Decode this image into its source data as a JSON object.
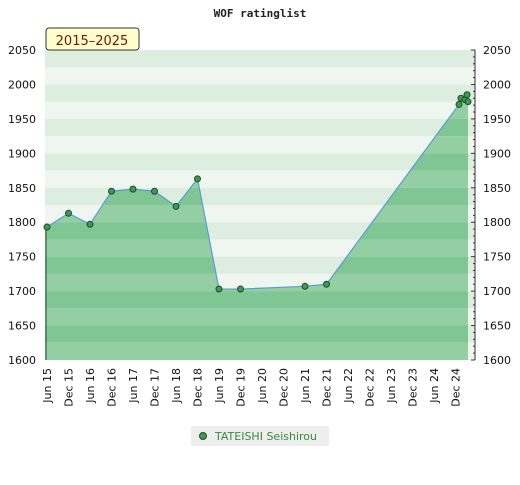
{
  "chart_data": {
    "type": "area",
    "title": "WOF ratinglist",
    "period_badge": "2015–2025",
    "ylim": [
      1600,
      2050
    ],
    "y_ticks": [
      1600,
      1650,
      1700,
      1750,
      1800,
      1850,
      1900,
      1950,
      2000,
      2050
    ],
    "x_tick_labels": [
      "Jun 15",
      "Dec 15",
      "Jun 16",
      "Dec 16",
      "Jun 17",
      "Dec 17",
      "Jun 18",
      "Dec 18",
      "Jun 19",
      "Dec 19",
      "Jun 20",
      "Dec 20",
      "Jun 21",
      "Dec 21",
      "Jun 22",
      "Dec 22",
      "Jun 23",
      "Dec 23",
      "Jun 24",
      "Dec 24"
    ],
    "series": [
      {
        "name": "TATEISHI Seishirou",
        "points": [
          {
            "x": "Jun 15",
            "y": 1793
          },
          {
            "x": "Dec 15",
            "y": 1813
          },
          {
            "x": "Jun 16",
            "y": 1797
          },
          {
            "x": "Dec 16",
            "y": 1845
          },
          {
            "x": "Jun 17",
            "y": 1848
          },
          {
            "x": "Dec 17",
            "y": 1845
          },
          {
            "x": "Jun 18",
            "y": 1823
          },
          {
            "x": "Dec 18",
            "y": 1863
          },
          {
            "x": "Jun 19",
            "y": 1703
          },
          {
            "x": "Dec 19",
            "y": 1703
          },
          {
            "x": "Jun 21",
            "y": 1707
          },
          {
            "x": "Dec 21",
            "y": 1710
          },
          {
            "x": "Dec 24",
            "y": 1971
          },
          {
            "x": "Dec 24",
            "y": 1980
          },
          {
            "x": "Dec 24",
            "y": 1978
          },
          {
            "x": "Dec 24",
            "y": 1985
          },
          {
            "x": "Dec 24",
            "y": 1975
          }
        ]
      }
    ],
    "grid": true,
    "legend_position": "bottom-center",
    "colors": {
      "area_fill": "#7cc48f",
      "line": "#5b9bd5",
      "marker": "#3d9a55",
      "band_light": "#eef6ef",
      "band_mid": "#b8dfc1",
      "band_dark": "#8ccd9c",
      "legend_text": "#3a8a3a",
      "badge_bg": "#ffffcc",
      "badge_text": "#7a1010"
    }
  }
}
